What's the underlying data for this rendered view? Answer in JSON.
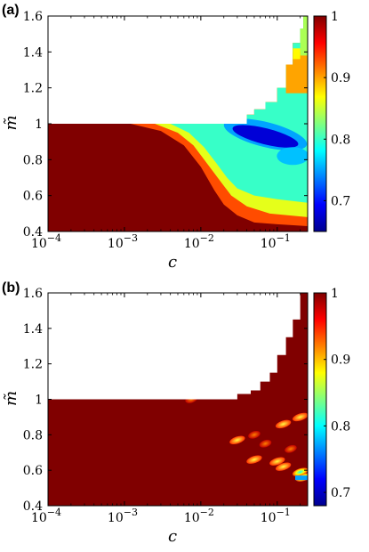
{
  "chart_data": [
    {
      "type": "heatmap",
      "panel_label": "(a)",
      "xlabel": "c",
      "ylabel": "m̃",
      "x_scale": "log",
      "xlim": [
        0.0001,
        0.25
      ],
      "ylim": [
        0.4,
        1.6
      ],
      "x_ticks": [
        {
          "value": 0.0001,
          "base": "10",
          "exp": "−4"
        },
        {
          "value": 0.001,
          "base": "10",
          "exp": "−3"
        },
        {
          "value": 0.01,
          "base": "10",
          "exp": "−2"
        },
        {
          "value": 0.1,
          "base": "10",
          "exp": "−1"
        }
      ],
      "y_ticks": [
        "0.4",
        "0.6",
        "0.8",
        "1",
        "1.2",
        "1.4",
        "1.6"
      ],
      "colorbar": {
        "range": [
          0.65,
          1.0
        ],
        "ticks": [
          "0.7",
          "0.8",
          "0.9",
          "1"
        ],
        "colormap": "jet"
      },
      "no_data_color": "#ffffff",
      "boundary": [
        [
          0.0001,
          1.0
        ],
        [
          0.03,
          1.0
        ],
        [
          0.04,
          1.05
        ],
        [
          0.05,
          1.08
        ],
        [
          0.07,
          1.12
        ],
        [
          0.1,
          1.2
        ],
        [
          0.13,
          1.33
        ],
        [
          0.16,
          1.45
        ],
        [
          0.2,
          1.53
        ],
        [
          0.22,
          1.6
        ],
        [
          0.25,
          1.6
        ]
      ],
      "regions": [
        {
          "description": "value 1 everywhere below the transition band",
          "value": 1.0
        },
        {
          "description": "transition band from c≈0.001,m≈1 down to c≈0.03,m≈0.5",
          "values": [
            0.92,
            0.85,
            0.8,
            0.77
          ]
        },
        {
          "description": "dark-blue trough around c 0.03–0.2, m 0.85–1.0",
          "value": 0.67
        },
        {
          "description": "yellow region c 0.13–0.22, m 1.2–1.4",
          "value": 0.9
        },
        {
          "description": "green strip c 0.2–0.25, m 1.4–1.6",
          "value": 0.85
        }
      ]
    },
    {
      "type": "heatmap",
      "panel_label": "(b)",
      "xlabel": "c",
      "ylabel": "m̃",
      "x_scale": "log",
      "xlim": [
        0.0001,
        0.25
      ],
      "ylim": [
        0.4,
        1.6
      ],
      "x_ticks": [
        {
          "value": 0.0001,
          "base": "10",
          "exp": "−4"
        },
        {
          "value": 0.001,
          "base": "10",
          "exp": "−3"
        },
        {
          "value": 0.01,
          "base": "10",
          "exp": "−2"
        },
        {
          "value": 0.1,
          "base": "10",
          "exp": "−1"
        }
      ],
      "y_ticks": [
        "0.4",
        "0.6",
        "0.8",
        "1",
        "1.2",
        "1.4",
        "1.6"
      ],
      "colorbar": {
        "range": [
          0.68,
          1.0
        ],
        "ticks": [
          "0.7",
          "0.8",
          "0.9",
          "1"
        ],
        "colormap": "jet"
      },
      "no_data_color": "#ffffff",
      "boundary": [
        [
          0.0001,
          1.0
        ],
        [
          0.025,
          1.0
        ],
        [
          0.03,
          1.03
        ],
        [
          0.045,
          1.05
        ],
        [
          0.06,
          1.1
        ],
        [
          0.08,
          1.15
        ],
        [
          0.1,
          1.25
        ],
        [
          0.13,
          1.35
        ],
        [
          0.16,
          1.45
        ],
        [
          0.2,
          1.6
        ],
        [
          0.25,
          1.6
        ]
      ],
      "background_value": 1.0,
      "spots": [
        {
          "c": 0.0075,
          "m": 1.0,
          "value": 0.9
        },
        {
          "c": 0.03,
          "m": 0.77,
          "value": 0.82
        },
        {
          "c": 0.05,
          "m": 0.66,
          "value": 0.82
        },
        {
          "c": 0.1,
          "m": 0.65,
          "value": 0.84
        },
        {
          "c": 0.12,
          "m": 0.62,
          "value": 0.8
        },
        {
          "c": 0.2,
          "m": 0.59,
          "value": 0.72
        },
        {
          "c": 0.22,
          "m": 0.56,
          "value": 0.7
        },
        {
          "c": 0.12,
          "m": 0.86,
          "value": 0.88
        },
        {
          "c": 0.2,
          "m": 0.9,
          "value": 0.88
        },
        {
          "c": 0.07,
          "m": 0.75,
          "value": 0.95
        },
        {
          "c": 0.15,
          "m": 0.72,
          "value": 0.95
        },
        {
          "c": 0.05,
          "m": 0.8,
          "value": 0.95
        }
      ]
    }
  ]
}
